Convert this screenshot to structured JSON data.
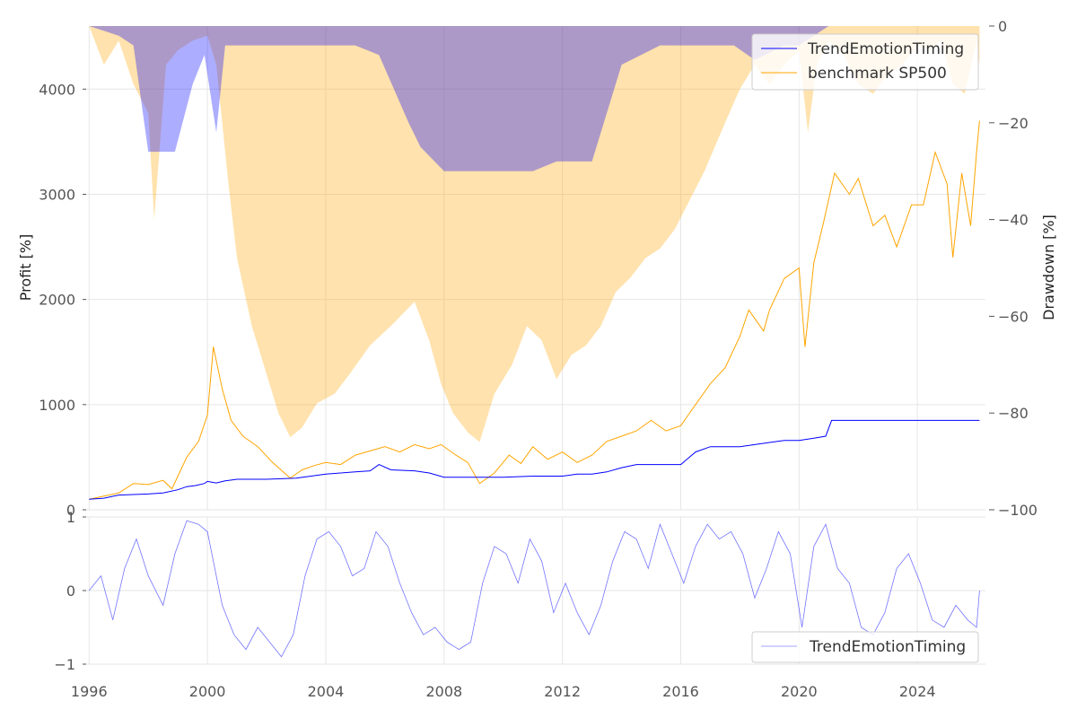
{
  "chart_data": [
    {
      "type": "line",
      "panel": "main",
      "ylabel_left": "Profit [%]",
      "ylabel_right": "Drawdown [%]",
      "x_range": [
        1995.9,
        2026.3
      ],
      "ylim_left": [
        0,
        4600
      ],
      "ylim_right": [
        -100,
        0
      ],
      "left_ticks": [
        0,
        1000,
        2000,
        3000,
        4000
      ],
      "right_ticks": [
        0,
        -20,
        -40,
        -60,
        -80,
        -100
      ],
      "right_tick_labels": [
        "0",
        "−20",
        "−40",
        "−60",
        "−80",
        "−100"
      ],
      "series": [
        {
          "name": "TrendEmotionTiming",
          "color": "#0000ff",
          "x": [
            1996.0,
            1996.5,
            1997.0,
            1997.5,
            1998.0,
            1998.5,
            1999.0,
            1999.3,
            1999.6,
            1999.9,
            2000.0,
            2000.3,
            2000.6,
            2001.0,
            2002.0,
            2003.0,
            2003.5,
            2004.0,
            2004.5,
            2005.0,
            2005.5,
            2005.8,
            2006.2,
            2007.0,
            2007.5,
            2008.0,
            2009.0,
            2010.0,
            2011.0,
            2012.0,
            2012.5,
            2013.0,
            2013.5,
            2014.0,
            2014.5,
            2015.0,
            2015.5,
            2016.0,
            2016.5,
            2017.0,
            2017.5,
            2018.0,
            2018.5,
            2019.0,
            2019.5,
            2020.0,
            2020.5,
            2020.9,
            2021.1,
            2021.5,
            2022.0,
            2023.0,
            2024.0,
            2025.0,
            2026.1
          ],
          "y": [
            100,
            110,
            140,
            145,
            150,
            160,
            190,
            220,
            230,
            250,
            270,
            255,
            275,
            290,
            290,
            300,
            320,
            340,
            350,
            360,
            370,
            430,
            380,
            370,
            350,
            310,
            310,
            310,
            320,
            320,
            340,
            340,
            360,
            400,
            430,
            430,
            430,
            430,
            550,
            600,
            600,
            600,
            620,
            640,
            660,
            660,
            680,
            700,
            850,
            850,
            850,
            850,
            850,
            850,
            850
          ]
        },
        {
          "name": "benchmark SP500",
          "color": "#ffa500",
          "x": [
            1996.0,
            1996.5,
            1997.0,
            1997.5,
            1998.0,
            1998.5,
            1998.8,
            1999.3,
            1999.7,
            2000.0,
            2000.2,
            2000.5,
            2000.8,
            2001.2,
            2001.7,
            2002.2,
            2002.8,
            2003.2,
            2003.6,
            2004.0,
            2004.5,
            2005.0,
            2005.5,
            2006.0,
            2006.5,
            2007.0,
            2007.5,
            2007.9,
            2008.4,
            2008.8,
            2009.2,
            2009.7,
            2010.2,
            2010.6,
            2011.0,
            2011.5,
            2012.0,
            2012.5,
            2013.0,
            2013.5,
            2014.0,
            2014.5,
            2015.0,
            2015.5,
            2016.0,
            2016.5,
            2017.0,
            2017.5,
            2018.0,
            2018.3,
            2018.8,
            2019.0,
            2019.5,
            2020.0,
            2020.2,
            2020.5,
            2020.8,
            2021.2,
            2021.7,
            2022.0,
            2022.5,
            2022.9,
            2023.3,
            2023.8,
            2024.2,
            2024.6,
            2025.0,
            2025.2,
            2025.5,
            2025.8,
            2026.0,
            2026.1
          ],
          "y": [
            100,
            130,
            160,
            250,
            240,
            280,
            200,
            500,
            650,
            900,
            1550,
            1150,
            850,
            700,
            600,
            450,
            300,
            380,
            420,
            450,
            430,
            520,
            560,
            600,
            550,
            620,
            580,
            620,
            520,
            450,
            250,
            350,
            520,
            440,
            600,
            480,
            550,
            450,
            520,
            650,
            700,
            750,
            850,
            750,
            800,
            1000,
            1200,
            1350,
            1650,
            1900,
            1700,
            1900,
            2200,
            2300,
            1550,
            2350,
            2700,
            3200,
            3000,
            3150,
            2700,
            2800,
            2500,
            2900,
            2900,
            3400,
            3100,
            2400,
            3200,
            2700,
            3400,
            3700
          ]
        }
      ],
      "drawdown_series": [
        {
          "name": "strategy drawdown",
          "color": "#0000ff",
          "x": [
            1996.0,
            1997.0,
            1997.5,
            1998.0,
            1998.9,
            1999.5,
            1999.9,
            2000.3,
            2000.6,
            2000.9,
            2002.5,
            2003.7,
            2005.0,
            2005.8,
            2006.8,
            2007.2,
            2008.0,
            2008.5,
            2010.0,
            2011.0,
            2011.8,
            2013.0,
            2013.5,
            2014.0,
            2015.3,
            2016.0,
            2017.0,
            2017.8,
            2018.5,
            2019.5,
            2020.0,
            2021.0,
            2026.1
          ],
          "y": [
            0,
            -2,
            -4,
            -26,
            -26,
            -12,
            -6,
            -22,
            -4,
            -4,
            -4,
            -4,
            -4,
            -6,
            -20,
            -25,
            -30,
            -30,
            -30,
            -30,
            -28,
            -28,
            -18,
            -8,
            -4,
            -4,
            -4,
            -4,
            -7,
            -4,
            -4,
            0,
            0
          ]
        },
        {
          "name": "benchmark drawdown",
          "color": "#ffa500",
          "x": [
            1996.0,
            1996.5,
            1997.0,
            1997.5,
            1998.0,
            1998.2,
            1998.6,
            1999.0,
            1999.5,
            2000.0,
            2000.3,
            2000.7,
            2001.0,
            2001.5,
            2002.0,
            2002.4,
            2002.8,
            2003.2,
            2003.7,
            2004.3,
            2004.8,
            2005.5,
            2006.2,
            2007.0,
            2007.5,
            2007.9,
            2008.3,
            2008.8,
            2009.2,
            2009.7,
            2010.3,
            2010.8,
            2011.3,
            2011.8,
            2012.3,
            2012.8,
            2013.3,
            2013.8,
            2014.3,
            2014.8,
            2015.3,
            2015.8,
            2016.3,
            2016.8,
            2017.5,
            2018.0,
            2018.5,
            2019.0,
            2019.5,
            2020.0,
            2020.3,
            2020.6,
            2021.0,
            2021.5,
            2022.0,
            2022.5,
            2023.0,
            2023.5,
            2024.0,
            2024.4,
            2024.8,
            2025.2,
            2025.6,
            2026.0,
            2026.1
          ],
          "y": [
            0,
            -8,
            -3,
            -12,
            -18,
            -40,
            -8,
            -5,
            -3,
            -2,
            -8,
            -32,
            -48,
            -62,
            -72,
            -80,
            -85,
            -83,
            -78,
            -76,
            -72,
            -66,
            -62,
            -57,
            -65,
            -74,
            -80,
            -84,
            -86,
            -76,
            -70,
            -62,
            -65,
            -73,
            -68,
            -66,
            -62,
            -55,
            -52,
            -48,
            -46,
            -42,
            -36,
            -30,
            -20,
            -13,
            -8,
            -12,
            -8,
            -5,
            -22,
            -8,
            -3,
            -6,
            -12,
            -14,
            -10,
            -8,
            -4,
            -5,
            -3,
            -12,
            -14,
            -3,
            -8
          ]
        }
      ],
      "legend": [
        "TrendEmotionTiming",
        "benchmark SP500"
      ],
      "legend_position": "top-right"
    },
    {
      "type": "line",
      "panel": "signal",
      "ylim": [
        -1,
        1
      ],
      "y_ticks": [
        1,
        0,
        -1
      ],
      "y_tick_labels": [
        "1",
        "0",
        "−1"
      ],
      "x_ticks": [
        1996,
        2000,
        2004,
        2008,
        2012,
        2016,
        2020,
        2024
      ],
      "series": [
        {
          "name": "TrendEmotionTiming",
          "color": "#0000ff",
          "x": [
            1996.0,
            1996.4,
            1996.8,
            1997.2,
            1997.6,
            1998.0,
            1998.5,
            1998.9,
            1999.3,
            1999.7,
            2000.0,
            2000.5,
            2000.9,
            2001.3,
            2001.7,
            2002.1,
            2002.5,
            2002.9,
            2003.3,
            2003.7,
            2004.1,
            2004.5,
            2004.9,
            2005.3,
            2005.7,
            2006.1,
            2006.5,
            2006.9,
            2007.3,
            2007.7,
            2008.1,
            2008.5,
            2008.9,
            2009.3,
            2009.7,
            2010.1,
            2010.5,
            2010.9,
            2011.3,
            2011.7,
            2012.1,
            2012.5,
            2012.9,
            2013.3,
            2013.7,
            2014.1,
            2014.5,
            2014.9,
            2015.3,
            2015.7,
            2016.1,
            2016.5,
            2016.9,
            2017.3,
            2017.7,
            2018.1,
            2018.5,
            2018.9,
            2019.3,
            2019.7,
            2020.1,
            2020.5,
            2020.9,
            2021.3,
            2021.7,
            2022.1,
            2022.5,
            2022.9,
            2023.3,
            2023.7,
            2024.1,
            2024.5,
            2024.9,
            2025.3,
            2025.7,
            2026.0,
            2026.1
          ],
          "y": [
            0,
            0.2,
            -0.4,
            0.3,
            0.7,
            0.2,
            -0.2,
            0.5,
            0.95,
            0.9,
            0.8,
            -0.2,
            -0.6,
            -0.8,
            -0.5,
            -0.7,
            -0.9,
            -0.6,
            0.2,
            0.7,
            0.8,
            0.6,
            0.2,
            0.3,
            0.8,
            0.6,
            0.1,
            -0.3,
            -0.6,
            -0.5,
            -0.7,
            -0.8,
            -0.7,
            0.1,
            0.6,
            0.5,
            0.1,
            0.7,
            0.4,
            -0.3,
            0.1,
            -0.3,
            -0.6,
            -0.2,
            0.4,
            0.8,
            0.7,
            0.3,
            0.9,
            0.5,
            0.1,
            0.6,
            0.9,
            0.7,
            0.8,
            0.5,
            -0.1,
            0.3,
            0.8,
            0.5,
            -0.5,
            0.6,
            0.9,
            0.3,
            0.1,
            -0.5,
            -0.6,
            -0.3,
            0.3,
            0.5,
            0.1,
            -0.4,
            -0.5,
            -0.2,
            -0.4,
            -0.5,
            0.0
          ]
        }
      ],
      "legend": [
        "TrendEmotionTiming"
      ],
      "legend_position": "bottom-right"
    }
  ]
}
